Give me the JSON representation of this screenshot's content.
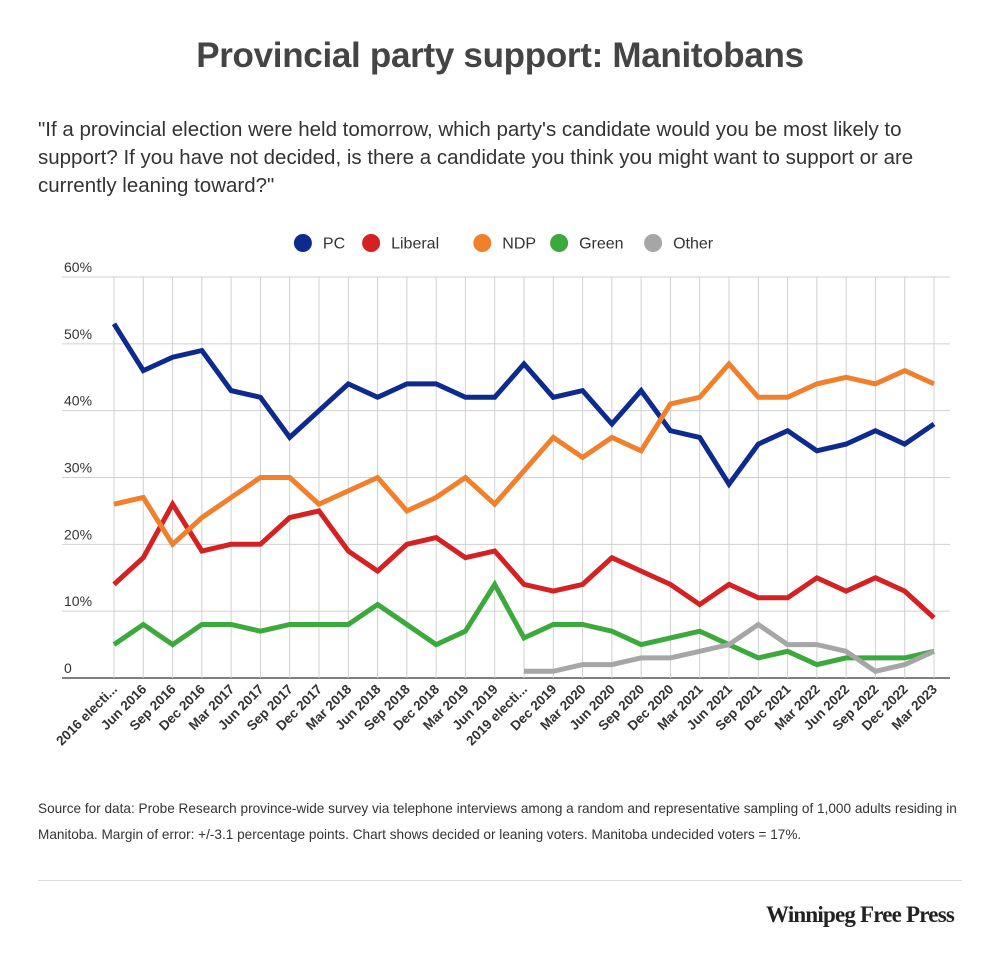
{
  "page": {
    "title": "Provincial party support: Manitobans",
    "subtitle": "\"If a provincial election were held tomorrow, which party's candidate would you be most likely to support? If you have not decided, is there a candidate you think you might want to support or are currently leaning toward?\"",
    "source": "Source for data:  Probe Research province-wide survey via telephone interviews among a random and representative sampling of 1,000 adults residing in Manitoba.  Margin of error: +/-3.1 percentage points. Chart shows decided or leaning voters. Manitoba undecided voters = 17%.",
    "brand": "Winnipeg Free Press"
  },
  "chart_data": {
    "type": "line",
    "categories": [
      "2016 electi...",
      "Jun 2016",
      "Sep 2016",
      "Dec 2016",
      "Mar 2017",
      "Jun 2017",
      "Sep 2017",
      "Dec 2017",
      "Mar 2018",
      "Jun 2018",
      "Sep 2018",
      "Dec 2018",
      "Mar 2019",
      "Jun 2019",
      "2019 electi...",
      "Dec 2019",
      "Mar 2020",
      "Jun 2020",
      "Sep 2020",
      "Dec 2020",
      "Mar 2021",
      "Jun 2021",
      "Sep 2021",
      "Dec 2021",
      "Mar 2022",
      "Jun 2022",
      "Sep 2022",
      "Dec 2022",
      "Mar 2023"
    ],
    "y_ticks": [
      "0",
      "10%",
      "20%",
      "30%",
      "40%",
      "50%",
      "60%"
    ],
    "ylim": [
      0,
      60
    ],
    "legend_position": "top-center",
    "grid": true,
    "series": [
      {
        "name": "PC",
        "color": "#0d2b8f",
        "values": [
          53,
          46,
          48,
          49,
          43,
          42,
          36,
          40,
          44,
          42,
          44,
          44,
          42,
          42,
          47,
          42,
          43,
          38,
          43,
          37,
          36,
          29,
          35,
          37,
          34,
          35,
          37,
          35,
          38
        ]
      },
      {
        "name": "Liberal",
        "color": "#d42222",
        "values": [
          14,
          18,
          26,
          19,
          20,
          20,
          24,
          25,
          19,
          16,
          20,
          21,
          18,
          19,
          14,
          13,
          14,
          18,
          16,
          14,
          11,
          14,
          12,
          12,
          15,
          13,
          15,
          13,
          9
        ]
      },
      {
        "name": "NDP",
        "color": "#f1802d",
        "values": [
          26,
          27,
          20,
          24,
          27,
          30,
          30,
          26,
          28,
          30,
          25,
          27,
          30,
          26,
          31,
          36,
          33,
          36,
          34,
          41,
          42,
          47,
          42,
          42,
          44,
          45,
          44,
          46,
          44
        ]
      },
      {
        "name": "Green",
        "color": "#3ca93c",
        "values": [
          5,
          8,
          5,
          8,
          8,
          7,
          8,
          8,
          8,
          11,
          8,
          5,
          7,
          14,
          6,
          8,
          8,
          7,
          5,
          6,
          7,
          5,
          3,
          4,
          2,
          3,
          3,
          3,
          4
        ]
      },
      {
        "name": "Other",
        "color": "#a6a6a6",
        "values": [
          null,
          null,
          null,
          null,
          null,
          null,
          null,
          null,
          null,
          null,
          null,
          null,
          null,
          null,
          1,
          1,
          2,
          2,
          3,
          3,
          4,
          5,
          8,
          5,
          5,
          4,
          1,
          2,
          4
        ]
      }
    ]
  }
}
